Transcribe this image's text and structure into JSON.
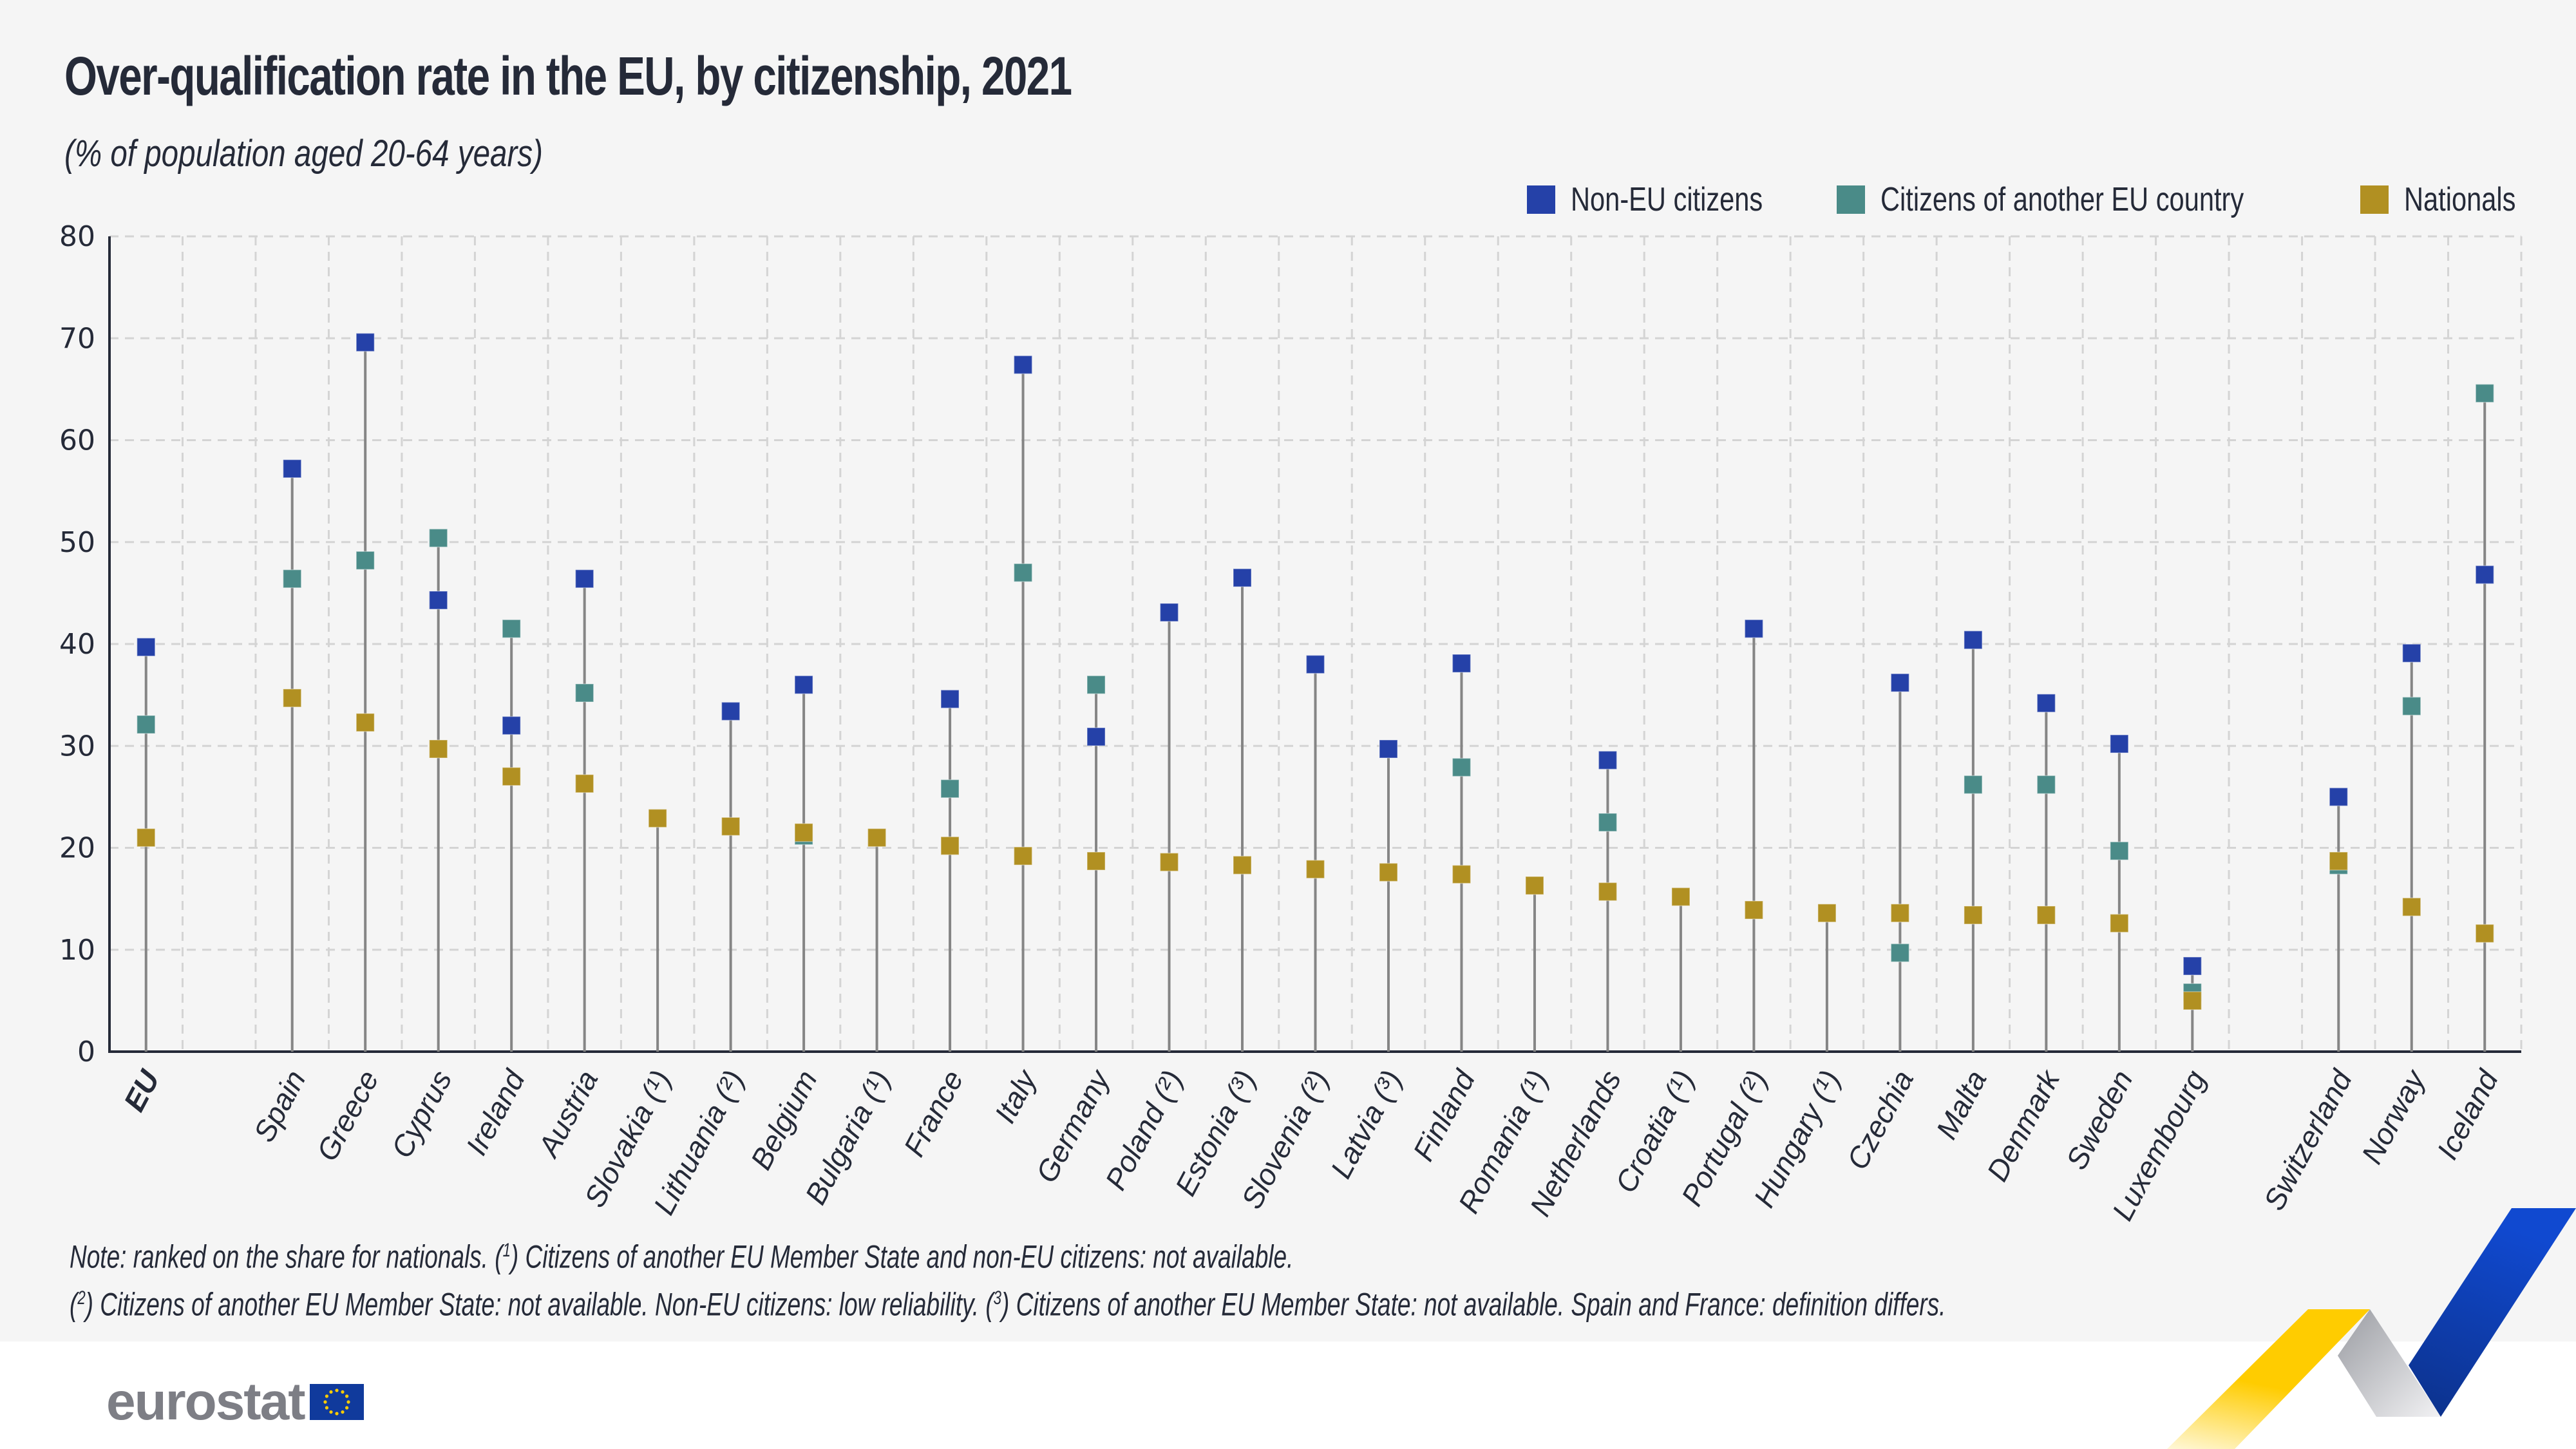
{
  "header": {
    "title": "Over-qualification rate in the EU, by citizenship, 2021",
    "subtitle": "(% of population aged 20-64 years)"
  },
  "legend": [
    {
      "label": "Non-EU citizens",
      "color": "#2541a8"
    },
    {
      "label": "Citizens of another EU country",
      "color": "#4a8b88"
    },
    {
      "label": "Nationals",
      "color": "#b19022"
    }
  ],
  "chart_data": {
    "type": "scatter",
    "subtype": "dot-plot",
    "title": "Over-qualification rate in the EU, by citizenship, 2021",
    "subtitle": "(% of population aged 20-64 years)",
    "xlabel": "",
    "ylabel": "",
    "ylim": [
      0,
      80
    ],
    "yticks": [
      0,
      10,
      20,
      30,
      40,
      50,
      60,
      70,
      80
    ],
    "grid": true,
    "legend_position": "top-right",
    "categories": [
      "EU",
      "",
      "Spain",
      "Greece",
      "Cyprus",
      "Ireland",
      "Austria",
      "Slovakia (¹)",
      "Lithuania (²)",
      "Belgium",
      "Bulgaria (¹)",
      "France",
      "Italy",
      "Germany",
      "Poland (²)",
      "Estonia (³)",
      "Slovenia (²)",
      "Latvia (³)",
      "Finland",
      "Romania (¹)",
      "Netherlands",
      "Croatia (¹)",
      "Portugal (²)",
      "Hungary (¹)",
      "Czechia",
      "Malta",
      "Denmark",
      "Sweden",
      "Luxembourg",
      "",
      "Switzerland",
      "Norway",
      "Iceland"
    ],
    "series": [
      {
        "name": "Non-EU citizens",
        "color": "#2541a8",
        "values": [
          39.7,
          null,
          57.2,
          69.6,
          44.3,
          32.0,
          46.4,
          null,
          33.4,
          36.0,
          null,
          34.6,
          67.4,
          30.9,
          43.1,
          46.5,
          38.0,
          29.7,
          38.1,
          null,
          28.6,
          null,
          41.5,
          null,
          36.2,
          40.4,
          34.2,
          30.2,
          8.4,
          null,
          25.0,
          39.1,
          46.8
        ]
      },
      {
        "name": "Citizens of another EU country",
        "color": "#4a8b88",
        "values": [
          32.1,
          null,
          46.4,
          48.2,
          50.4,
          41.5,
          35.2,
          null,
          null,
          21.2,
          null,
          25.8,
          47.0,
          36.0,
          null,
          null,
          null,
          null,
          27.9,
          null,
          22.5,
          null,
          null,
          null,
          9.7,
          26.2,
          26.2,
          19.7,
          5.8,
          null,
          18.3,
          33.9,
          64.6
        ]
      },
      {
        "name": "Nationals",
        "color": "#b19022",
        "values": [
          21.0,
          null,
          34.7,
          32.3,
          29.7,
          27.0,
          26.3,
          22.9,
          22.1,
          21.5,
          21.0,
          20.2,
          19.2,
          18.7,
          18.6,
          18.3,
          17.9,
          17.6,
          17.4,
          16.3,
          15.7,
          15.2,
          13.9,
          13.6,
          13.6,
          13.4,
          13.4,
          12.6,
          5.0,
          null,
          18.7,
          14.2,
          11.6
        ]
      }
    ]
  },
  "notes": {
    "line1_prefix": "Note: ranked on the share for nationals. (",
    "line1_sup": "1",
    "line1_suffix": ") Citizens of another EU Member State and non-EU citizens: not available.",
    "line2_a": "(",
    "line2_sup1": "2",
    "line2_b": ") Citizens of another EU Member State: not available. Non-EU citizens: low reliability. (",
    "line2_sup2": "3",
    "line2_c": ") Citizens of another EU Member State: not available. Spain and France: definition differs."
  },
  "footer": {
    "logo_text": "eurostat"
  }
}
